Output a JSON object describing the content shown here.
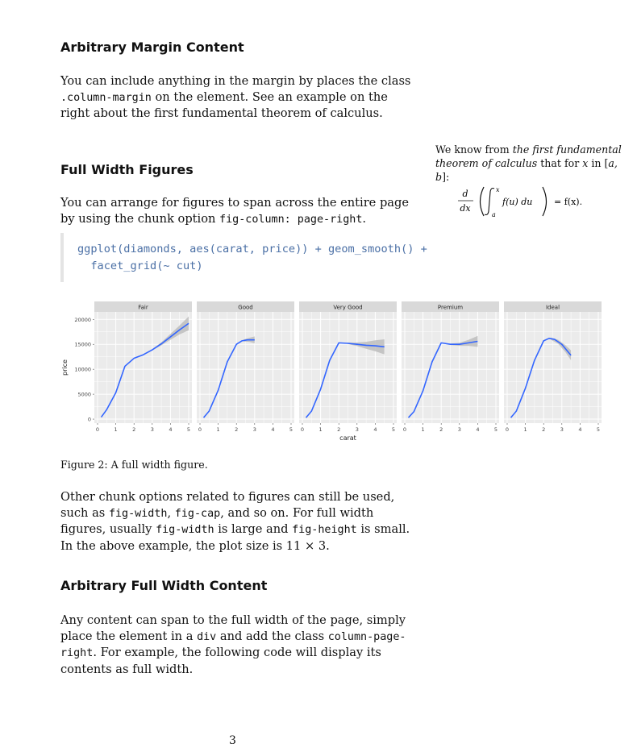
{
  "sections": [
    {
      "heading": "Arbitrary Margin Content"
    },
    {
      "heading": "Full Width Figures"
    },
    {
      "heading": "Arbitrary Full Width Content"
    }
  ],
  "para1": {
    "a": "You can include anything in the margin by places the class ",
    "code1": ".column-margin",
    "b": " on the element. See an example on the right about the first fundamental theorem of calculus."
  },
  "para2": {
    "a": "You can arrange for figures to span across the entire page by using the chunk option ",
    "code1": "fig-column: page-right",
    "b": "."
  },
  "code": {
    "line1": "ggplot(diamonds, aes(carat, price)) + geom_smooth() +",
    "line2": "  facet_grid(~ cut)"
  },
  "margin_note": {
    "a": "We know from ",
    "em": "the first fundamental theorem of calculus",
    "b": " that for ",
    "x": "x",
    "c": " in [",
    "ab": "a, b",
    "d": "]:"
  },
  "math": {
    "d": "d",
    "dx": "dx",
    "upper": "x",
    "lower": "a",
    "integrand": "f(u) du",
    "rhs": "= f(x)."
  },
  "caption": "Figure 2: A full width figure.",
  "para3": {
    "a": "Other chunk options related to figures can still be used, such as ",
    "c1": "fig-width",
    "b": ", ",
    "c2": "fig-cap",
    "c": ", and so on. For full width figures, usually ",
    "c3": "fig-width",
    "d": " is large and ",
    "c4": "fig-height",
    "e": " is small. In the above example, the plot size is 11 × 3."
  },
  "para4": {
    "a": "Any content can span to the full width of the page, simply place the element in a ",
    "c1": "div",
    "b": " and add the class ",
    "c2": "column-page-right",
    "c": ". For example, the following code will display its contents as full width."
  },
  "page_number": "3",
  "chart_data": {
    "type": "line",
    "xlabel": "carat",
    "ylabel": "price",
    "xlim": [
      0,
      5
    ],
    "ylim": [
      -800,
      21500
    ],
    "xticks": [
      0,
      1,
      2,
      3,
      4,
      5
    ],
    "yticks": [
      0,
      5000,
      10000,
      15000,
      20000
    ],
    "ytick_labels": [
      "0",
      "5000",
      "10000",
      "15000",
      "20000"
    ],
    "grid": true,
    "colors": {
      "line": "#3366ff",
      "band": "#bdbdbd",
      "panel": "#ebebeb",
      "strip": "#d9d9d9"
    },
    "panels": [
      {
        "name": "Fair",
        "x": [
          0.2,
          0.5,
          1.0,
          1.5,
          2.0,
          2.5,
          3.0,
          3.5,
          4.0,
          4.5,
          5.0
        ],
        "y": [
          400,
          1900,
          5300,
          10600,
          12200,
          12900,
          13900,
          15100,
          16500,
          17900,
          19200
        ],
        "band_x": [
          3.0,
          3.5,
          4.0,
          4.5,
          5.0
        ],
        "band_half": [
          100,
          300,
          600,
          900,
          1400
        ]
      },
      {
        "name": "Good",
        "x": [
          0.2,
          0.5,
          1.0,
          1.5,
          2.0,
          2.3,
          2.6,
          3.0
        ],
        "y": [
          300,
          1600,
          5800,
          11500,
          15000,
          15700,
          15900,
          15900
        ],
        "band_x": [
          2.4,
          2.7,
          3.0
        ],
        "band_half": [
          200,
          400,
          700
        ]
      },
      {
        "name": "Very Good",
        "x": [
          0.2,
          0.5,
          1.0,
          1.5,
          2.0,
          2.5,
          3.0,
          3.5,
          4.0,
          4.5
        ],
        "y": [
          300,
          1600,
          6000,
          11800,
          15300,
          15200,
          15000,
          14800,
          14700,
          14500
        ],
        "band_x": [
          2.5,
          3.0,
          3.5,
          4.0,
          4.5
        ],
        "band_half": [
          150,
          350,
          700,
          1100,
          1500
        ]
      },
      {
        "name": "Premium",
        "x": [
          0.2,
          0.5,
          1.0,
          1.5,
          2.0,
          2.5,
          3.0,
          3.5,
          4.0
        ],
        "y": [
          300,
          1500,
          5700,
          11500,
          15300,
          15000,
          15000,
          15300,
          15600
        ],
        "band_x": [
          2.5,
          3.0,
          3.5,
          4.0
        ],
        "band_half": [
          150,
          300,
          600,
          1100
        ]
      },
      {
        "name": "Ideal",
        "x": [
          0.2,
          0.5,
          1.0,
          1.5,
          2.0,
          2.3,
          2.6,
          3.0,
          3.5
        ],
        "y": [
          300,
          1600,
          6200,
          11800,
          15700,
          16200,
          16000,
          15000,
          12800
        ],
        "band_x": [
          2.4,
          2.8,
          3.2,
          3.5
        ],
        "band_half": [
          200,
          400,
          700,
          1000
        ]
      }
    ]
  }
}
